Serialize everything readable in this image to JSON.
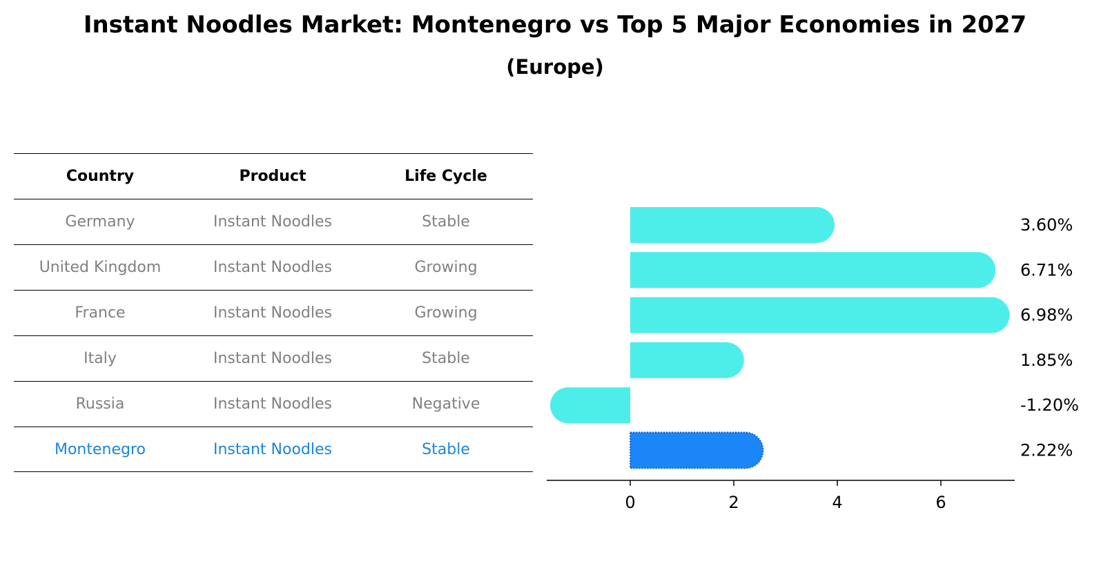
{
  "title": "Instant Noodles Market: Montenegro vs Top 5 Major Economies in 2027",
  "subtitle": "(Europe)",
  "colors": {
    "bar": "#4deeea",
    "highlight_bar": "#1a86f7",
    "highlight_text": "#1a86d6",
    "muted_text": "#808080"
  },
  "table": {
    "headers": [
      "Country",
      "Product",
      "Life Cycle"
    ],
    "rows": [
      [
        "Germany",
        "Instant Noodles",
        "Stable"
      ],
      [
        "United Kingdom",
        "Instant Noodles",
        "Growing"
      ],
      [
        "France",
        "Instant Noodles",
        "Growing"
      ],
      [
        "Italy",
        "Instant Noodles",
        "Stable"
      ],
      [
        "Russia",
        "Instant Noodles",
        "Negative"
      ],
      [
        "Montenegro",
        "Instant Noodles",
        "Stable"
      ]
    ],
    "highlight_row": 5
  },
  "chart_data": {
    "type": "bar",
    "orientation": "horizontal",
    "categories": [
      "Germany",
      "United Kingdom",
      "France",
      "Italy",
      "Russia",
      "Montenegro"
    ],
    "values": [
      3.6,
      6.71,
      6.98,
      1.85,
      -1.2,
      2.22
    ],
    "value_labels": [
      "3.60%",
      "6.71%",
      "6.98%",
      "1.85%",
      "-1.20%",
      "2.22%"
    ],
    "highlight_index": 5,
    "xlim": [
      -1.6,
      7.4
    ],
    "xticks": [
      0,
      2,
      4,
      6
    ],
    "xtick_labels": [
      "0",
      "2",
      "4",
      "6"
    ],
    "grid": false
  }
}
